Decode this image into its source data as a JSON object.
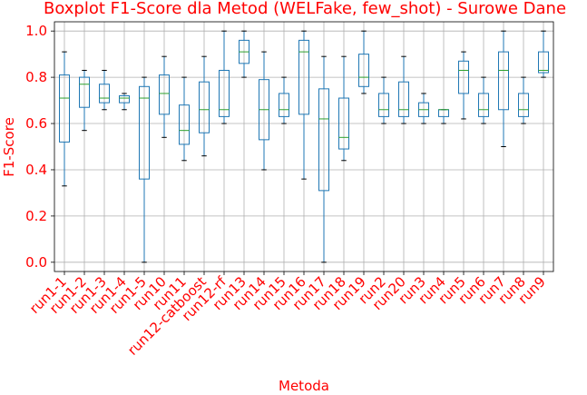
{
  "chart_data": {
    "type": "boxplot",
    "title": "Boxplot F1-Score dla Metod (WELFake, few_shot) - Surowe Dane",
    "xlabel": "Metoda",
    "ylabel": "F1-Score",
    "ylim": [
      -0.04,
      1.04
    ],
    "yticks": [
      "0.0",
      "0.2",
      "0.4",
      "0.6",
      "0.8",
      "1.0"
    ],
    "grid": true,
    "colors": {
      "text": "#ff0000",
      "box": "#1f77b4",
      "median": "#2ca02c",
      "cap": "#000000",
      "grid": "#b0b0b0"
    },
    "series": [
      {
        "category": "run1-1",
        "whisker_low": 0.33,
        "q1": 0.52,
        "median": 0.71,
        "q3": 0.81,
        "whisker_high": 0.91
      },
      {
        "category": "run1-2",
        "whisker_low": 0.57,
        "q1": 0.67,
        "median": 0.77,
        "q3": 0.8,
        "whisker_high": 0.83
      },
      {
        "category": "run1-3",
        "whisker_low": 0.66,
        "q1": 0.69,
        "median": 0.71,
        "q3": 0.77,
        "whisker_high": 0.83
      },
      {
        "category": "run1-4",
        "whisker_low": 0.66,
        "q1": 0.69,
        "median": 0.71,
        "q3": 0.72,
        "whisker_high": 0.73
      },
      {
        "category": "run1-5",
        "whisker_low": 0.0,
        "q1": 0.36,
        "median": 0.71,
        "q3": 0.76,
        "whisker_high": 0.8
      },
      {
        "category": "run10",
        "whisker_low": 0.54,
        "q1": 0.64,
        "median": 0.73,
        "q3": 0.81,
        "whisker_high": 0.89
      },
      {
        "category": "run11",
        "whisker_low": 0.44,
        "q1": 0.51,
        "median": 0.57,
        "q3": 0.68,
        "whisker_high": 0.8
      },
      {
        "category": "run12-catboost",
        "whisker_low": 0.46,
        "q1": 0.56,
        "median": 0.66,
        "q3": 0.78,
        "whisker_high": 0.89
      },
      {
        "category": "run12-rf",
        "whisker_low": 0.6,
        "q1": 0.63,
        "median": 0.66,
        "q3": 0.83,
        "whisker_high": 1.0
      },
      {
        "category": "run13",
        "whisker_low": 0.8,
        "q1": 0.86,
        "median": 0.91,
        "q3": 0.96,
        "whisker_high": 1.0
      },
      {
        "category": "run14",
        "whisker_low": 0.4,
        "q1": 0.53,
        "median": 0.66,
        "q3": 0.79,
        "whisker_high": 0.91
      },
      {
        "category": "run15",
        "whisker_low": 0.6,
        "q1": 0.63,
        "median": 0.66,
        "q3": 0.73,
        "whisker_high": 0.8
      },
      {
        "category": "run16",
        "whisker_low": 0.36,
        "q1": 0.64,
        "median": 0.91,
        "q3": 0.96,
        "whisker_high": 1.0
      },
      {
        "category": "run17",
        "whisker_low": 0.0,
        "q1": 0.31,
        "median": 0.62,
        "q3": 0.75,
        "whisker_high": 0.89
      },
      {
        "category": "run18",
        "whisker_low": 0.44,
        "q1": 0.49,
        "median": 0.54,
        "q3": 0.71,
        "whisker_high": 0.89
      },
      {
        "category": "run19",
        "whisker_low": 0.73,
        "q1": 0.76,
        "median": 0.8,
        "q3": 0.9,
        "whisker_high": 1.0
      },
      {
        "category": "run2",
        "whisker_low": 0.6,
        "q1": 0.63,
        "median": 0.66,
        "q3": 0.73,
        "whisker_high": 0.8
      },
      {
        "category": "run20",
        "whisker_low": 0.6,
        "q1": 0.63,
        "median": 0.66,
        "q3": 0.78,
        "whisker_high": 0.89
      },
      {
        "category": "run3",
        "whisker_low": 0.6,
        "q1": 0.63,
        "median": 0.66,
        "q3": 0.69,
        "whisker_high": 0.73
      },
      {
        "category": "run4",
        "whisker_low": 0.6,
        "q1": 0.63,
        "median": 0.66,
        "q3": 0.66,
        "whisker_high": 0.66
      },
      {
        "category": "run5",
        "whisker_low": 0.62,
        "q1": 0.73,
        "median": 0.83,
        "q3": 0.87,
        "whisker_high": 0.91
      },
      {
        "category": "run6",
        "whisker_low": 0.6,
        "q1": 0.63,
        "median": 0.66,
        "q3": 0.73,
        "whisker_high": 0.8
      },
      {
        "category": "run7",
        "whisker_low": 0.5,
        "q1": 0.66,
        "median": 0.83,
        "q3": 0.91,
        "whisker_high": 1.0
      },
      {
        "category": "run8",
        "whisker_low": 0.6,
        "q1": 0.63,
        "median": 0.66,
        "q3": 0.73,
        "whisker_high": 0.8
      },
      {
        "category": "run9",
        "whisker_low": 0.8,
        "q1": 0.82,
        "median": 0.83,
        "q3": 0.91,
        "whisker_high": 1.0
      }
    ]
  }
}
